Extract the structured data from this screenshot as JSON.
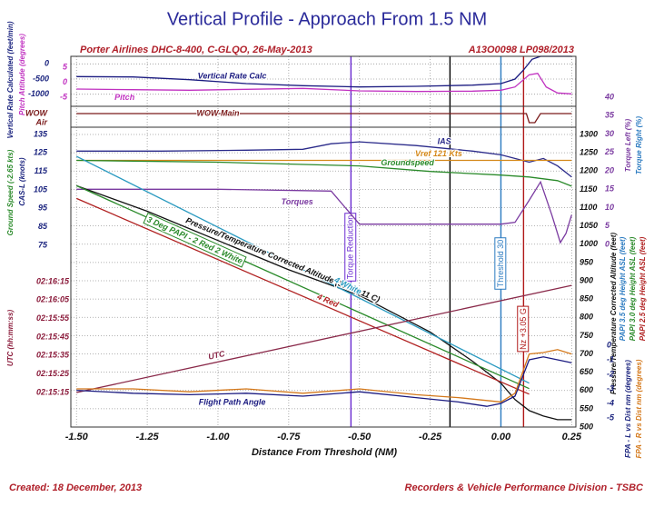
{
  "chart_data": {
    "type": "line",
    "title": "Vertical Profile - Approach From 1.5 NM",
    "subtitle_left": "Porter Airlines DHC-8-400, C-GLQO, 26-May-2013",
    "subtitle_right": "A13O0098  LP098/2013",
    "xlabel": "Distance From Threshold (NM)",
    "created": "Created:  18 December, 2013",
    "credit": "Recorders & Vehicle Performance Division - TSBC",
    "grid": true,
    "xlim": [
      -1.52,
      0.265
    ],
    "xticks": [
      {
        "value": -1.5,
        "label": "-1.50"
      },
      -1.25,
      {
        "value": -1.0,
        "label": "-1.00"
      },
      -0.75,
      {
        "value": -0.5,
        "label": "-0.50"
      },
      -0.25,
      {
        "value": 0,
        "label": "0.00"
      },
      0.25
    ],
    "axes": [
      {
        "title": "Vertical Rate Calculated (feet/min)",
        "color": "#1a237e",
        "lim": [
          -1250,
          250
        ],
        "ticks": [
          0,
          -500,
          -1000
        ]
      },
      {
        "title": "Pitch Attitude (degrees)",
        "color": "#c030c0",
        "lim": [
          -6.4,
          8.6
        ],
        "ticks": [
          5,
          0,
          -5
        ]
      },
      {
        "color": "#7a1a1a",
        "lim": [
          0,
          1
        ],
        "ticks": [
          {
            "value": 1,
            "label": "WOW"
          },
          {
            "value": 0,
            "label": "Air"
          }
        ]
      },
      {
        "title": "CAS-L (knots)",
        "color": "#1a237e",
        "lim": [
          75,
          135
        ],
        "ticks": [
          135,
          125,
          115,
          105,
          95,
          85,
          75
        ]
      },
      {
        "title": "Ground Speed (-2.65 kts)",
        "color": "#2a8a2a",
        "lim": [
          75,
          135
        ]
      },
      {
        "title": "Torque Left (%)",
        "color": "#7a3aa0",
        "lim": [
          0,
          40
        ],
        "ticks": [
          40,
          35,
          30,
          25,
          20,
          15,
          10,
          5,
          0
        ]
      },
      {
        "title": "Torque Right (%)",
        "color": "#2a7ac0",
        "lim": [
          0,
          40
        ]
      },
      {
        "title": "Pressure/Temperature Corrected Altitude (feet)",
        "color": "#111111",
        "lim": [
          500,
          1300
        ],
        "ticks": [
          1300,
          1250,
          1200,
          1150,
          1100,
          1050,
          1000,
          950,
          900,
          850,
          800,
          750,
          700,
          650,
          600,
          550,
          500
        ]
      },
      {
        "title": "PAPI 3.5 deg Height ASL (feet)",
        "color": "#2a7ac0",
        "lim": [
          500,
          1300
        ]
      },
      {
        "title": "PAPI 3.0 deg Height ASL (feet)",
        "color": "#2a8a2a",
        "lim": [
          500,
          1300
        ]
      },
      {
        "title": "PAPI 2.5 deg Height ASL (feet)",
        "color": "#b02020",
        "lim": [
          500,
          1300
        ]
      },
      {
        "title": "UTC (hh:mm:ss)",
        "color": "#8a1a3a",
        "lim": [
          8115,
          8175
        ],
        "ticks": [
          {
            "value": 8175,
            "label": "02:16:15"
          },
          {
            "value": 8165,
            "label": "02:16:05"
          },
          {
            "value": 8155,
            "label": "02:15:55"
          },
          {
            "value": 8145,
            "label": "02:15:45"
          },
          {
            "value": 8135,
            "label": "02:15:35"
          },
          {
            "value": 8125,
            "label": "02:15:25"
          },
          {
            "value": 8115,
            "label": "02:15:15"
          }
        ]
      },
      {
        "title": "FPA - L vs Dist nm (degrees)",
        "color": "#1a237e",
        "lim": [
          -5,
          0
        ],
        "ticks": [
          0,
          -1,
          -2,
          -3,
          -4,
          -5
        ]
      },
      {
        "title": "FPA - R vs Dist nm (degrees)",
        "color": "#d4781a",
        "lim": [
          -5,
          0
        ]
      }
    ],
    "series": [
      {
        "name": "Vertical Rate Calc",
        "color": "#1a1a80",
        "axis": 0,
        "x": [
          -1.5,
          -1.3,
          -1.1,
          -0.9,
          -0.7,
          -0.5,
          -0.3,
          -0.1,
          0,
          0.05,
          0.08,
          0.11,
          0.14,
          0.2,
          0.25
        ],
        "values": [
          -420,
          -430,
          -520,
          -650,
          -720,
          -760,
          -740,
          -700,
          -650,
          -500,
          -200,
          150,
          250,
          250,
          250
        ]
      },
      {
        "name": "Pitch",
        "color": "#c030c0",
        "axis": 1,
        "x": [
          -1.5,
          -1.3,
          -1.1,
          -0.9,
          -0.7,
          -0.5,
          -0.3,
          -0.1,
          0,
          0.05,
          0.1,
          0.13,
          0.16,
          0.2,
          0.25
        ],
        "values": [
          -2.2,
          -2.4,
          -2.6,
          -2.3,
          -2.0,
          -2.8,
          -3.0,
          -2.9,
          -2.6,
          -1.5,
          2.5,
          3.0,
          -1.5,
          -3.5,
          -3.8
        ]
      },
      {
        "name": "WOW Main",
        "color": "#7a1a1a",
        "axis": 2,
        "x": [
          -1.5,
          0.09,
          0.1,
          0.12,
          0.14,
          0.15,
          0.25
        ],
        "values": [
          1,
          1,
          0,
          0,
          1,
          1,
          1
        ]
      },
      {
        "name": "IAS",
        "color": "#2a2a8a",
        "axis": 3,
        "x": [
          -1.5,
          -1.2,
          -0.9,
          -0.7,
          -0.6,
          -0.5,
          -0.3,
          -0.1,
          0,
          0.1,
          0.15,
          0.2,
          0.25
        ],
        "values": [
          126,
          126,
          126.5,
          127,
          130,
          131,
          129,
          126,
          124,
          120,
          122,
          118,
          112
        ]
      },
      {
        "name": "Vref 121 Kts",
        "color": "#d4881a",
        "axis": 3,
        "x": [
          -1.5,
          0.25
        ],
        "values": [
          121,
          121
        ]
      },
      {
        "name": "Groundspeed",
        "color": "#2a8a2a",
        "axis": 4,
        "x": [
          -1.5,
          -1.0,
          -0.5,
          -0.25,
          0,
          0.1,
          0.2,
          0.25
        ],
        "values": [
          121,
          120,
          118,
          115,
          113,
          112,
          110,
          107
        ]
      },
      {
        "name": "Torques",
        "color": "#7a3aa0",
        "axis": 5,
        "x": [
          -1.5,
          -1.0,
          -0.6,
          -0.55,
          -0.5,
          -0.2,
          0,
          0.05,
          0.1,
          0.14,
          0.18,
          0.21,
          0.23,
          0.25
        ],
        "values": [
          15,
          15,
          14.5,
          10,
          5.5,
          5.5,
          5.5,
          6,
          12,
          17,
          8,
          0.5,
          3,
          8
        ]
      },
      {
        "name": "Pressure/Temperature Corrected Altitude (30.25, 11 C)",
        "color": "#111111",
        "axis": 7,
        "x": [
          -1.5,
          -1.25,
          -1.0,
          -0.75,
          -0.5,
          -0.25,
          -0.1,
          0,
          0.05,
          0.1,
          0.15,
          0.2,
          0.25
        ],
        "values": [
          1160,
          1090,
          1010,
          930,
          860,
          760,
          680,
          620,
          575,
          545,
          530,
          520,
          520
        ]
      },
      {
        "name": "4 White",
        "color": "#2a9ac0",
        "axis": 8,
        "x": [
          -1.5,
          0.1
        ],
        "values": [
          1240,
          620
        ]
      },
      {
        "name": "3 Deg PAPI - 2 Red 2 White",
        "color": "#2a8a2a",
        "axis": 9,
        "x": [
          -1.5,
          0.1
        ],
        "values": [
          1160,
          605
        ]
      },
      {
        "name": "4 Red",
        "color": "#b02020",
        "axis": 10,
        "x": [
          -1.5,
          0.1
        ],
        "values": [
          1125,
          590
        ]
      },
      {
        "name": "UTC",
        "color": "#8a2a4a",
        "axis": 11,
        "x": [
          -1.5,
          0.25
        ],
        "values": [
          8115,
          8173
        ]
      },
      {
        "name": "Flight Path Angle",
        "color": "#1a1a80",
        "axis": 12,
        "x": [
          -1.5,
          -1.3,
          -1.1,
          -0.9,
          -0.7,
          -0.5,
          -0.3,
          -0.15,
          -0.05,
          0,
          0.05,
          0.1,
          0.15,
          0.2,
          0.25
        ],
        "values": [
          -3.1,
          -3.3,
          -3.4,
          -3.3,
          -3.5,
          -3.2,
          -3.6,
          -3.9,
          -4.2,
          -4.0,
          -3.5,
          -1.0,
          -0.8,
          -1.0,
          -1.2
        ]
      },
      {
        "color": "#d4781a",
        "axis": 13,
        "x": [
          -1.5,
          -1.3,
          -1.1,
          -0.9,
          -0.7,
          -0.5,
          -0.3,
          -0.15,
          -0.05,
          0,
          0.05,
          0.1,
          0.15,
          0.2,
          0.25
        ],
        "values": [
          -3.0,
          -3.0,
          -3.2,
          -3.0,
          -3.3,
          -3.0,
          -3.4,
          -3.6,
          -3.8,
          -3.9,
          -3.3,
          -0.6,
          -0.5,
          -0.3,
          -0.6
        ]
      }
    ],
    "markers": [
      {
        "x": -0.53,
        "label": "Torque Reduction",
        "color": "#6a2ad0"
      },
      {
        "x": -0.18,
        "color": "#000000"
      },
      {
        "x": 0.0,
        "label": "Threshold 30",
        "color": "#2a7ac0"
      },
      {
        "x": 0.08,
        "label": "Nz +3.05 G",
        "color": "#b01818"
      }
    ]
  }
}
